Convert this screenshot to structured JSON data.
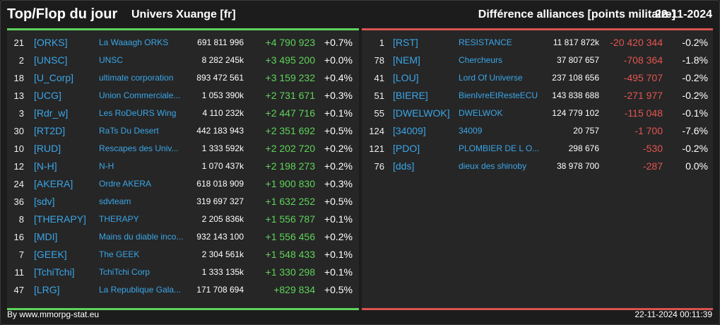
{
  "header": {
    "title": "Top/Flop du jour",
    "server": "Univers Xuange [fr]",
    "subtitle": "Différence alliances [points militaire]",
    "date": "22-11-2024"
  },
  "colors": {
    "up": "#5fd35a",
    "down": "#e25550",
    "link": "#3aa6e8"
  },
  "top": [
    {
      "rank": "21",
      "tag": "[ORKS]",
      "name": "La Waaagh ORKS",
      "points": "691 811 996",
      "diff": "+4 790 923",
      "pct": "+0.7%"
    },
    {
      "rank": "2",
      "tag": "[UNSC]",
      "name": "UNSC",
      "points": "8 282 245k",
      "diff": "+3 495 200",
      "pct": "+0.0%"
    },
    {
      "rank": "18",
      "tag": "[U_Corp]",
      "name": "ultimate corporation",
      "points": "893 472 561",
      "diff": "+3 159 232",
      "pct": "+0.4%"
    },
    {
      "rank": "13",
      "tag": "[UCG]",
      "name": "Union Commerciale...",
      "points": "1 053 390k",
      "diff": "+2 731 671",
      "pct": "+0.3%"
    },
    {
      "rank": "3",
      "tag": "[Rdr_w]",
      "name": "Les RoDeURS Wing",
      "points": "4 110 232k",
      "diff": "+2 447 716",
      "pct": "+0.1%"
    },
    {
      "rank": "30",
      "tag": "[RT2D]",
      "name": "RaTs Du Desert",
      "points": "442 183 943",
      "diff": "+2 351 692",
      "pct": "+0.5%"
    },
    {
      "rank": "10",
      "tag": "[RUD]",
      "name": "Rescapes des Univ...",
      "points": "1 333 592k",
      "diff": "+2 202 720",
      "pct": "+0.2%"
    },
    {
      "rank": "12",
      "tag": "[N-H]",
      "name": "N-H",
      "points": "1 070 437k",
      "diff": "+2 198 273",
      "pct": "+0.2%"
    },
    {
      "rank": "24",
      "tag": "[AKERA]",
      "name": "Ordre AKERA",
      "points": "618 018 909",
      "diff": "+1 900 830",
      "pct": "+0.3%"
    },
    {
      "rank": "36",
      "tag": "[sdv]",
      "name": "sdvteam",
      "points": "319 697 327",
      "diff": "+1 632 252",
      "pct": "+0.5%"
    },
    {
      "rank": "8",
      "tag": "[THERAPY]",
      "name": "THERAPY",
      "points": "2 205 836k",
      "diff": "+1 556 787",
      "pct": "+0.1%"
    },
    {
      "rank": "16",
      "tag": "[MDI]",
      "name": "Mains du diable inco...",
      "points": "932 143 100",
      "diff": "+1 556 456",
      "pct": "+0.2%"
    },
    {
      "rank": "7",
      "tag": "[GEEK]",
      "name": "The GEEK",
      "points": "2 304 561k",
      "diff": "+1 548 433",
      "pct": "+0.1%"
    },
    {
      "rank": "11",
      "tag": "[TchiTchi]",
      "name": "TchiTchi Corp",
      "points": "1 333 135k",
      "diff": "+1 330 298",
      "pct": "+0.1%"
    },
    {
      "rank": "47",
      "tag": "[LRG]",
      "name": "La Republique Gala...",
      "points": "171 708 694",
      "diff": "+829 834",
      "pct": "+0.5%"
    }
  ],
  "flop": [
    {
      "rank": "1",
      "tag": "[RST]",
      "name": "RESISTANCE",
      "points": "11 817 872k",
      "diff": "-20 420 344",
      "pct": "-0.2%"
    },
    {
      "rank": "78",
      "tag": "[NEM]",
      "name": "Chercheurs",
      "points": "37 807 657",
      "diff": "-708 364",
      "pct": "-1.8%"
    },
    {
      "rank": "41",
      "tag": "[LOU]",
      "name": "Lord Of Universe",
      "points": "237 108 656",
      "diff": "-495 707",
      "pct": "-0.2%"
    },
    {
      "rank": "51",
      "tag": "[BIERE]",
      "name": "BienIvreEtResteECU",
      "points": "143 838 688",
      "diff": "-271 977",
      "pct": "-0.2%"
    },
    {
      "rank": "55",
      "tag": "[DWELWOK]",
      "name": "DWELWOK",
      "points": "124 779 102",
      "diff": "-115 048",
      "pct": "-0.1%"
    },
    {
      "rank": "124",
      "tag": "[34009]",
      "name": "34009",
      "points": "20 757",
      "diff": "-1 700",
      "pct": "-7.6%"
    },
    {
      "rank": "121",
      "tag": "[PDO]",
      "name": "PLOMBIER DE L O...",
      "points": "298 676",
      "diff": "-530",
      "pct": "-0.2%"
    },
    {
      "rank": "76",
      "tag": "[dds]",
      "name": "dieux des shinoby",
      "points": "38 978 700",
      "diff": "-287",
      "pct": "0.0%"
    }
  ],
  "footer": {
    "credit": "By www.mmorpg-stat.eu",
    "timestamp": "22-11-2024 00:11:39"
  }
}
